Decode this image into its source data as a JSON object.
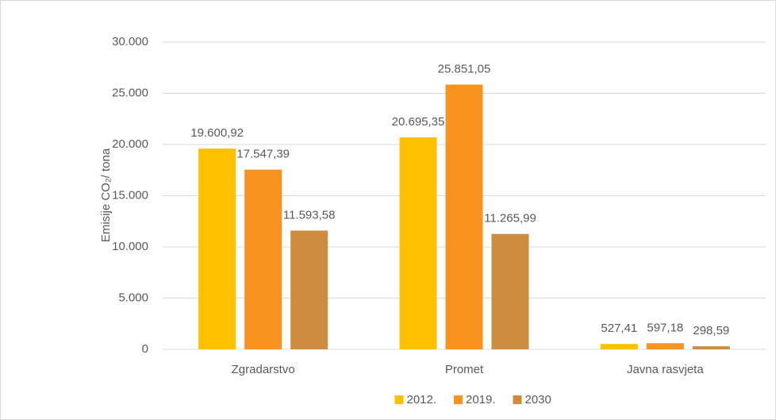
{
  "chart_data": {
    "type": "bar",
    "ylabel": "Emisije CO₂/ tona",
    "categories": [
      "Zgradarstvo",
      "Promet",
      "Javna rasvjeta"
    ],
    "series": [
      {
        "name": "2012.",
        "color": "#FFC000",
        "values": [
          19600.92,
          20695.35,
          527.41
        ],
        "value_labels": [
          "19.600,92",
          "20.695,35",
          "527,41"
        ]
      },
      {
        "name": "2019.",
        "color": "#F7931E",
        "values": [
          17547.39,
          25851.05,
          597.18
        ],
        "value_labels": [
          "17.547,39",
          "25.851,05",
          "597,18"
        ]
      },
      {
        "name": "2030",
        "color": "#CE8D3E",
        "values": [
          11593.58,
          11265.99,
          298.59
        ],
        "value_labels": [
          "11.593,58",
          "11.265,99",
          "298,59"
        ]
      }
    ],
    "ylim": [
      0,
      30000
    ],
    "yticks": [
      0,
      {
        "value": 5000,
        "label": "5.000"
      },
      {
        "value": 10000,
        "label": "10.000"
      },
      {
        "value": 15000,
        "label": "15.000"
      },
      {
        "value": 20000,
        "label": "20.000"
      },
      {
        "value": 25000,
        "label": "25.000"
      },
      {
        "value": 30000,
        "label": "30.000"
      }
    ],
    "grid": true,
    "legend": "bottom"
  }
}
